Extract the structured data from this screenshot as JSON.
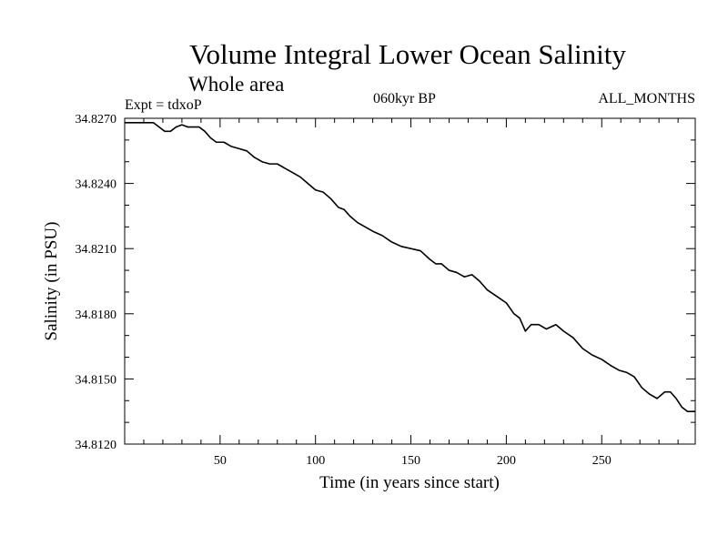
{
  "chart_data": {
    "type": "line",
    "title": "Volume Integral Lower Ocean Salinity",
    "subtitle": "Whole area",
    "experiment": "Expt = tdxoP",
    "period": "060kyr BP",
    "months": "ALL_MONTHS",
    "xlabel": "Time (in years since start)",
    "ylabel": "Salinity (in PSU)",
    "xlim": [
      0,
      299
    ],
    "ylim": [
      34.812,
      34.827
    ],
    "x_ticks": [
      50,
      100,
      150,
      200,
      250
    ],
    "y_ticks": [
      34.827,
      34.824,
      34.821,
      34.818,
      34.815,
      34.812
    ],
    "y_tick_labels": [
      "34.8270",
      "34.8240",
      "34.8210",
      "34.8180",
      "34.8150",
      "34.8120"
    ],
    "grid": false,
    "series": [
      {
        "color": "#000000",
        "x": [
          0,
          5,
          10,
          15,
          18,
          21,
          24,
          27,
          30,
          33,
          36,
          39,
          42,
          45,
          48,
          52,
          56,
          60,
          64,
          68,
          72,
          76,
          80,
          84,
          88,
          92,
          96,
          100,
          104,
          108,
          112,
          115,
          118,
          122,
          126,
          130,
          135,
          140,
          145,
          150,
          155,
          160,
          163,
          166,
          170,
          174,
          178,
          182,
          186,
          190,
          195,
          200,
          204,
          207,
          210,
          213,
          217,
          221,
          226,
          230,
          235,
          240,
          245,
          250,
          255,
          259,
          263,
          267,
          271,
          275,
          279,
          283,
          286,
          289,
          292,
          295,
          299
        ],
        "values": [
          34.8268,
          34.8268,
          34.8268,
          34.8268,
          34.8266,
          34.8264,
          34.8264,
          34.8266,
          34.8267,
          34.8266,
          34.8266,
          34.8266,
          34.8264,
          34.8261,
          34.8259,
          34.8259,
          34.8257,
          34.8256,
          34.8255,
          34.8252,
          34.825,
          34.8249,
          34.8249,
          34.8247,
          34.8245,
          34.8243,
          34.824,
          34.8237,
          34.8236,
          34.8233,
          34.8229,
          34.8228,
          34.8225,
          34.8222,
          34.822,
          34.8218,
          34.8216,
          34.8213,
          34.8211,
          34.821,
          34.8209,
          34.8205,
          34.8203,
          34.8203,
          34.82,
          34.8199,
          34.8197,
          34.8198,
          34.8195,
          34.8191,
          34.8188,
          34.8185,
          34.818,
          34.8178,
          34.8172,
          34.8175,
          34.8175,
          34.8173,
          34.8175,
          34.8172,
          34.8169,
          34.8164,
          34.8161,
          34.8159,
          34.8156,
          34.8154,
          34.8153,
          34.8151,
          34.8146,
          34.8143,
          34.8141,
          34.8144,
          34.8144,
          34.8141,
          34.8137,
          34.8135,
          34.8135
        ]
      }
    ]
  }
}
